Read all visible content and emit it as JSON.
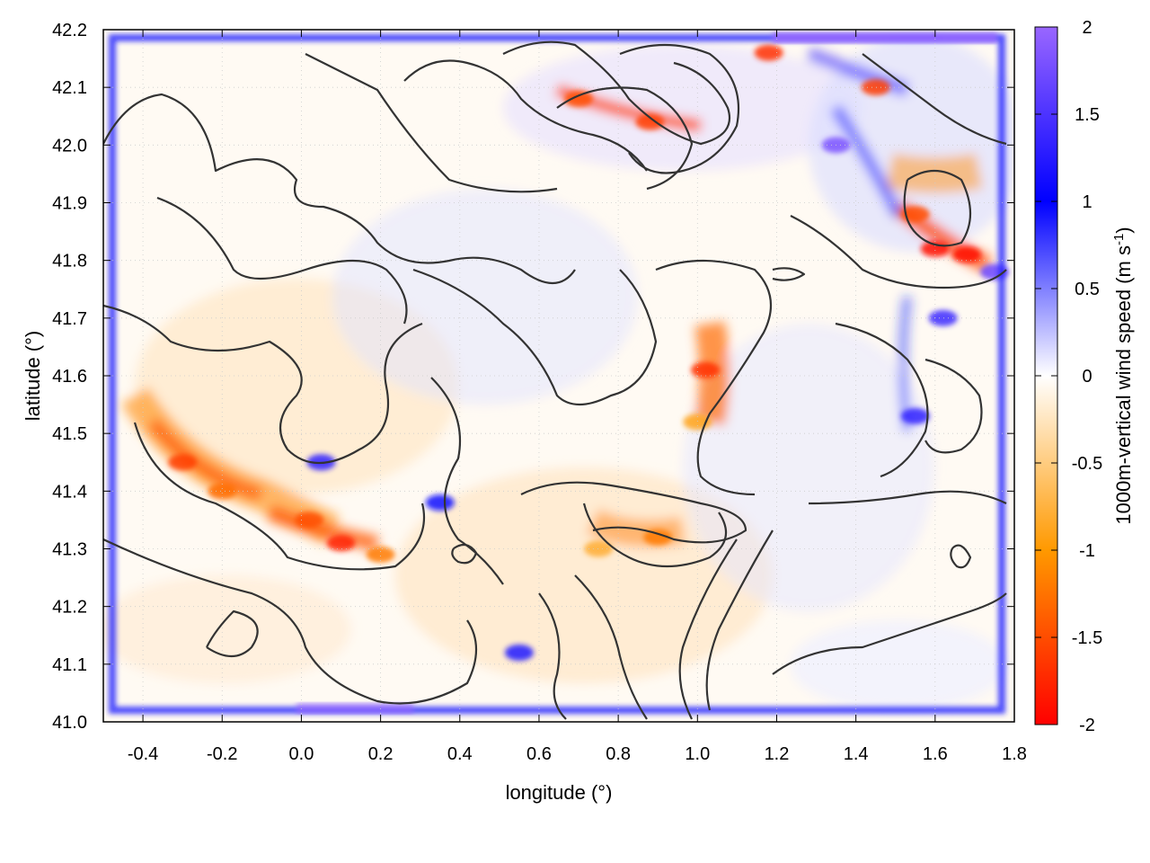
{
  "chart_data": {
    "type": "heatmap",
    "title": "",
    "xlabel": "longitude (°)",
    "ylabel": "latitude (°)",
    "colorbar_label": "1000m-vertical wind speed (m s",
    "colorbar_label_sup": "-1",
    "colorbar_label_end": ")",
    "xlim": [
      -0.5,
      1.8
    ],
    "ylim": [
      41.0,
      42.2
    ],
    "zlim": [
      -2,
      2
    ],
    "x_ticks": [
      -0.4,
      -0.2,
      0.0,
      0.2,
      0.4,
      0.6,
      0.8,
      1.0,
      1.2,
      1.4,
      1.6,
      1.8
    ],
    "x_tick_labels": [
      "-0.4",
      "-0.2",
      "0.0",
      "0.2",
      "0.4",
      "0.6",
      "0.8",
      "1.0",
      "1.2",
      "1.4",
      "1.6",
      "1.8"
    ],
    "y_ticks": [
      41.0,
      41.1,
      41.2,
      41.3,
      41.4,
      41.5,
      41.6,
      41.7,
      41.8,
      41.9,
      42.0,
      42.1,
      42.2
    ],
    "y_tick_labels": [
      "41.0",
      "41.1",
      "41.2",
      "41.3",
      "41.4",
      "41.5",
      "41.6",
      "41.7",
      "41.8",
      "41.9",
      "42.0",
      "42.1",
      "42.2"
    ],
    "colorbar_ticks": [
      2,
      1.5,
      1,
      0.5,
      0,
      -0.5,
      -1,
      -1.5,
      -2
    ],
    "colorbar_tick_labels": [
      "2",
      "1.5",
      "1",
      "0.5",
      "0",
      "-0.5",
      "-1",
      "-1.5",
      "-2"
    ],
    "colormap": [
      "#ff0000",
      "#ff9900",
      "#ffffff",
      "#0000ff",
      "#9966ff"
    ],
    "grid": true,
    "contour_color": "#333333",
    "hotspots": [
      {
        "x": -0.3,
        "y": 41.45,
        "value": -1.6
      },
      {
        "x": -0.2,
        "y": 41.4,
        "value": -1.3
      },
      {
        "x": 0.02,
        "y": 41.35,
        "value": -1.5
      },
      {
        "x": 0.1,
        "y": 41.31,
        "value": -1.8
      },
      {
        "x": 0.2,
        "y": 41.29,
        "value": -1.2
      },
      {
        "x": 1.02,
        "y": 41.61,
        "value": -1.7
      },
      {
        "x": 1.0,
        "y": 41.52,
        "value": -0.9
      },
      {
        "x": 0.9,
        "y": 41.32,
        "value": -1.2
      },
      {
        "x": 0.75,
        "y": 41.3,
        "value": -0.8
      },
      {
        "x": 0.7,
        "y": 42.08,
        "value": -1.5
      },
      {
        "x": 0.88,
        "y": 42.04,
        "value": -1.6
      },
      {
        "x": 1.18,
        "y": 42.16,
        "value": -1.7
      },
      {
        "x": 1.45,
        "y": 42.1,
        "value": -1.6
      },
      {
        "x": 1.6,
        "y": 41.82,
        "value": -1.9
      },
      {
        "x": 1.68,
        "y": 41.81,
        "value": -1.9
      },
      {
        "x": 1.55,
        "y": 41.88,
        "value": -1.5
      },
      {
        "x": 1.35,
        "y": 42.0,
        "value": 1.8
      },
      {
        "x": 1.62,
        "y": 41.7,
        "value": 1.4
      },
      {
        "x": 1.55,
        "y": 41.53,
        "value": 1.3
      },
      {
        "x": 0.55,
        "y": 41.12,
        "value": 1.2
      },
      {
        "x": 0.35,
        "y": 41.38,
        "value": 1.1
      },
      {
        "x": 0.05,
        "y": 41.45,
        "value": 1.3
      },
      {
        "x": 1.75,
        "y": 41.78,
        "value": 1.7
      }
    ]
  }
}
